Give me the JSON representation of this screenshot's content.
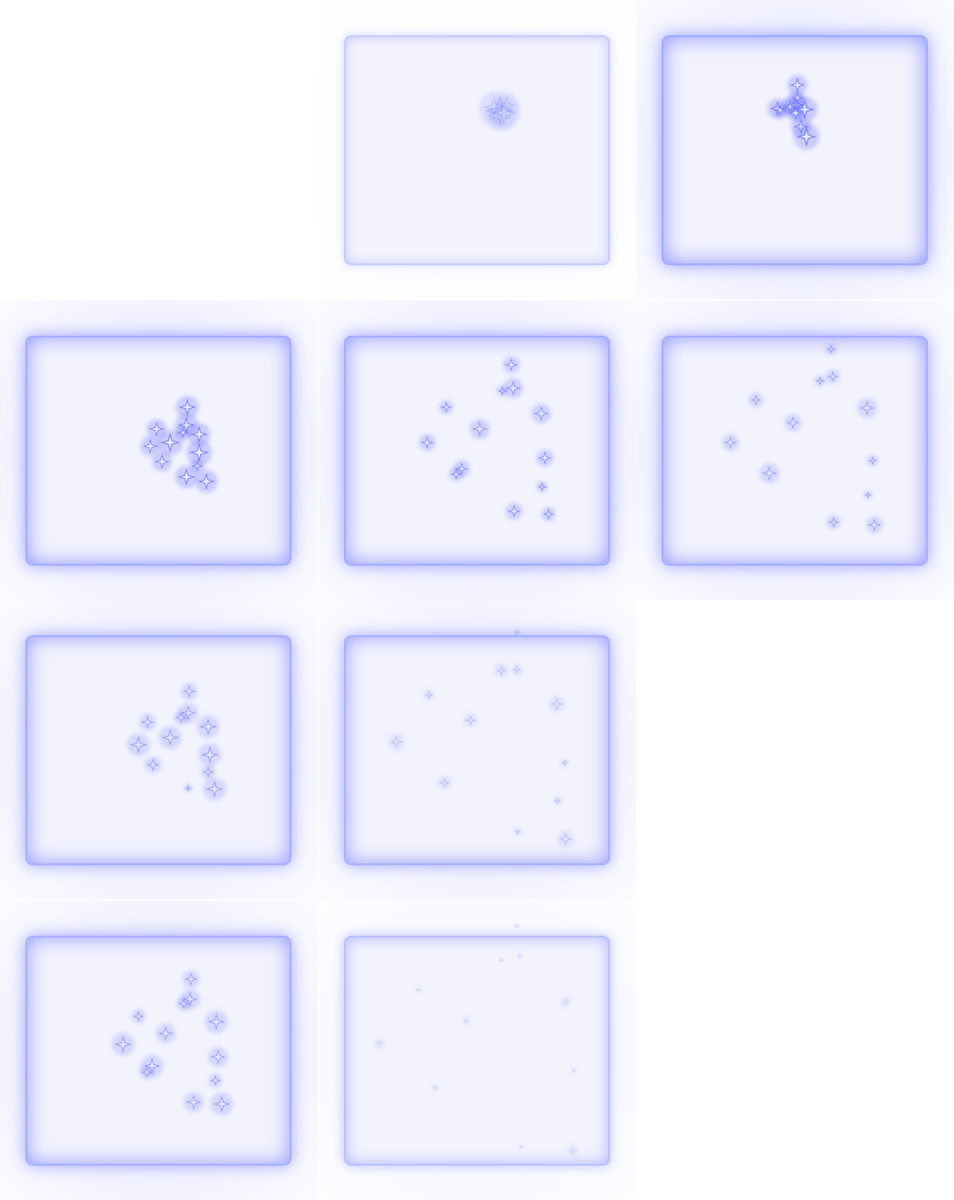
{
  "sheet": {
    "description_name": "sprite-sheet",
    "frames": [
      {
        "index": 0,
        "empty": true
      },
      {
        "index": 1,
        "intensity": 0.25,
        "frame_glow": 0.15,
        "sparkles": [
          [
            172,
            122,
            14
          ],
          [
            166,
            118,
            10
          ],
          [
            180,
            116,
            8
          ],
          [
            174,
            130,
            9
          ],
          [
            168,
            128,
            7
          ],
          [
            177,
            125,
            11
          ]
        ]
      },
      {
        "index": 2,
        "intensity": 0.9,
        "frame_glow": 0.95,
        "sparkles": [
          [
            150,
            94,
            7
          ],
          [
            148,
            116,
            8
          ],
          [
            142,
            118,
            6
          ],
          [
            128,
            120,
            7
          ],
          [
            158,
            121,
            9
          ],
          [
            154,
            140,
            7
          ],
          [
            160,
            151,
            9
          ],
          [
            148,
            125,
            6
          ],
          [
            131,
            122,
            5
          ],
          [
            150,
            108,
            5
          ]
        ]
      },
      {
        "index": 3,
        "intensity": 0.85,
        "frame_glow": 0.9,
        "sparkles": [
          [
            179,
            118,
            8
          ],
          [
            145,
            142,
            7
          ],
          [
            178,
            138,
            8
          ],
          [
            192,
            148,
            8
          ],
          [
            160,
            157,
            9
          ],
          [
            138,
            161,
            7
          ],
          [
            192,
            168,
            9
          ],
          [
            151,
            178,
            7
          ],
          [
            178,
            195,
            8
          ],
          [
            200,
            200,
            8
          ],
          [
            190,
            183,
            5
          ],
          [
            174,
            146,
            5
          ]
        ]
      },
      {
        "index": 4,
        "intensity": 0.75,
        "frame_glow": 0.9,
        "sparkles": [
          [
            185,
            71,
            6
          ],
          [
            187,
            97,
            7
          ],
          [
            175,
            100,
            4
          ],
          [
            113,
            118,
            5
          ],
          [
            218,
            125,
            7
          ],
          [
            150,
            142,
            7
          ],
          [
            92,
            157,
            6
          ],
          [
            222,
            174,
            6
          ],
          [
            130,
            186,
            6
          ],
          [
            124,
            192,
            5
          ],
          [
            219,
            206,
            4
          ],
          [
            188,
            233,
            6
          ],
          [
            226,
            236,
            5
          ]
        ]
      },
      {
        "index": 5,
        "intensity": 0.6,
        "frame_glow": 0.9,
        "sparkles": [
          [
            187,
            54,
            4
          ],
          [
            189,
            84,
            5
          ],
          [
            175,
            89,
            4
          ],
          [
            104,
            110,
            5
          ],
          [
            227,
            119,
            7
          ],
          [
            145,
            135,
            6
          ],
          [
            76,
            157,
            6
          ],
          [
            233,
            177,
            4
          ],
          [
            119,
            191,
            7
          ],
          [
            228,
            215,
            3
          ],
          [
            190,
            245,
            5
          ],
          [
            235,
            248,
            6
          ]
        ]
      },
      {
        "index": 6,
        "intensity": 0.6,
        "frame_glow": 0.85,
        "sparkles": [
          [
            181,
            101,
            6
          ],
          [
            180,
            125,
            7
          ],
          [
            172,
            130,
            5
          ],
          [
            135,
            135,
            6
          ],
          [
            202,
            140,
            8
          ],
          [
            160,
            152,
            8
          ],
          [
            125,
            160,
            8
          ],
          [
            204,
            171,
            8
          ],
          [
            141,
            182,
            6
          ],
          [
            202,
            190,
            5
          ],
          [
            209,
            209,
            8
          ],
          [
            180,
            208,
            3
          ]
        ]
      },
      {
        "index": 7,
        "intensity": 0.35,
        "frame_glow": 0.8,
        "sparkles": [
          [
            174,
            78,
            5
          ],
          [
            191,
            77,
            4
          ],
          [
            94,
            105,
            4
          ],
          [
            235,
            115,
            6
          ],
          [
            140,
            133,
            5
          ],
          [
            58,
            157,
            6
          ],
          [
            111,
            202,
            5
          ],
          [
            244,
            180,
            3
          ],
          [
            236,
            222,
            3
          ],
          [
            192,
            256,
            3
          ],
          [
            245,
            264,
            6
          ],
          [
            191,
            36,
            2
          ]
        ]
      },
      {
        "index": 8,
        "empty": true
      },
      {
        "index": 9,
        "intensity": 0.6,
        "frame_glow": 0.85,
        "sparkles": [
          [
            183,
            87,
            6
          ],
          [
            182,
            109,
            7
          ],
          [
            175,
            114,
            5
          ],
          [
            125,
            128,
            5
          ],
          [
            211,
            134,
            8
          ],
          [
            155,
            147,
            7
          ],
          [
            108,
            159,
            8
          ],
          [
            213,
            173,
            7
          ],
          [
            140,
            183,
            8
          ],
          [
            134,
            190,
            5
          ],
          [
            210,
            199,
            5
          ],
          [
            186,
            223,
            7
          ],
          [
            217,
            225,
            8
          ]
        ]
      },
      {
        "index": 10,
        "intensity": 0.2,
        "frame_glow": 0.45,
        "sparkles": [
          [
            191,
            28,
            2
          ],
          [
            174,
            66,
            2
          ],
          [
            194,
            62,
            2
          ],
          [
            82,
            99,
            2
          ],
          [
            245,
            112,
            4
          ],
          [
            135,
            133,
            3
          ],
          [
            39,
            158,
            4
          ],
          [
            101,
            207,
            3
          ],
          [
            254,
            188,
            2
          ],
          [
            196,
            272,
            2
          ],
          [
            253,
            276,
            4
          ]
        ]
      },
      {
        "index": 11,
        "empty": true
      }
    ]
  }
}
